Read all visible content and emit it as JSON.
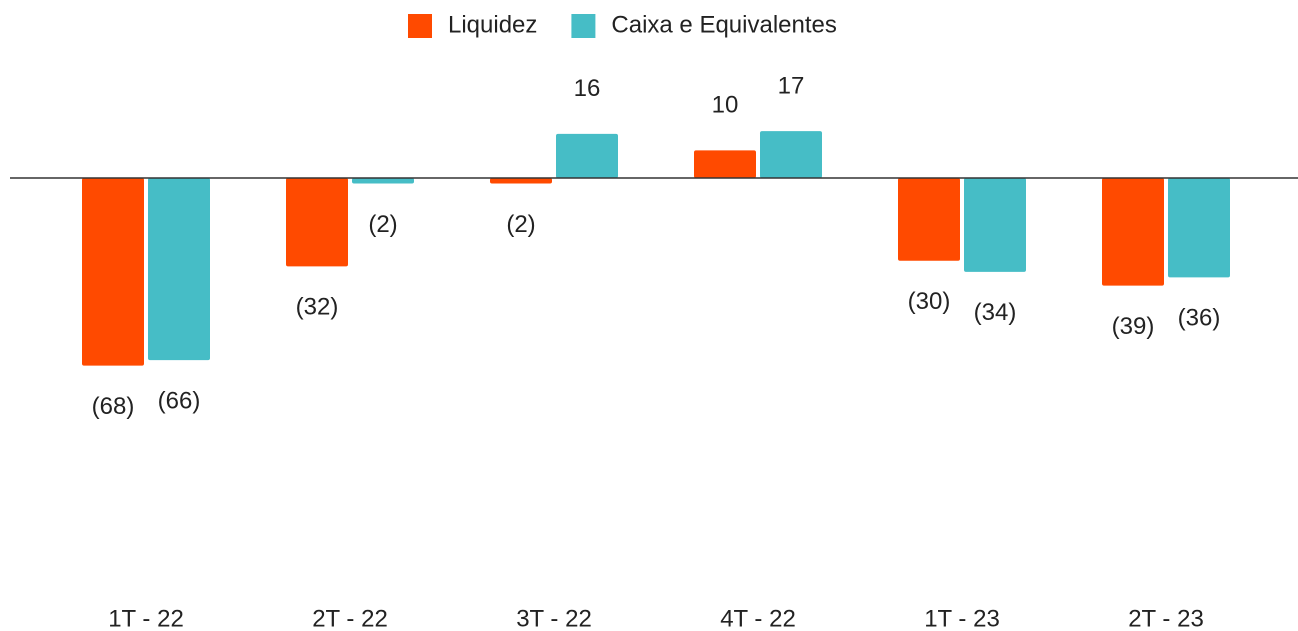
{
  "chart_data": {
    "type": "bar",
    "categories": [
      "1T - 22",
      "2T - 22",
      "3T - 22",
      "4T - 22",
      "1T - 23",
      "2T - 23"
    ],
    "series": [
      {
        "name": "Liquidez",
        "color": "#ff4a00",
        "values": [
          -68,
          -32,
          -2,
          10,
          -30,
          -39
        ],
        "value_labels": [
          "(68)",
          "(32)",
          "(2)",
          "10",
          "(30)",
          "(39)"
        ]
      },
      {
        "name": "Caixa e Equivalentes",
        "color": "#46bdc6",
        "values": [
          -66,
          -2,
          16,
          17,
          -34,
          -36
        ],
        "value_labels": [
          "(66)",
          "(2)",
          "16",
          "17",
          "(34)",
          "(36)"
        ]
      }
    ],
    "ylim": [
      -150,
      50
    ],
    "legend": "top"
  }
}
